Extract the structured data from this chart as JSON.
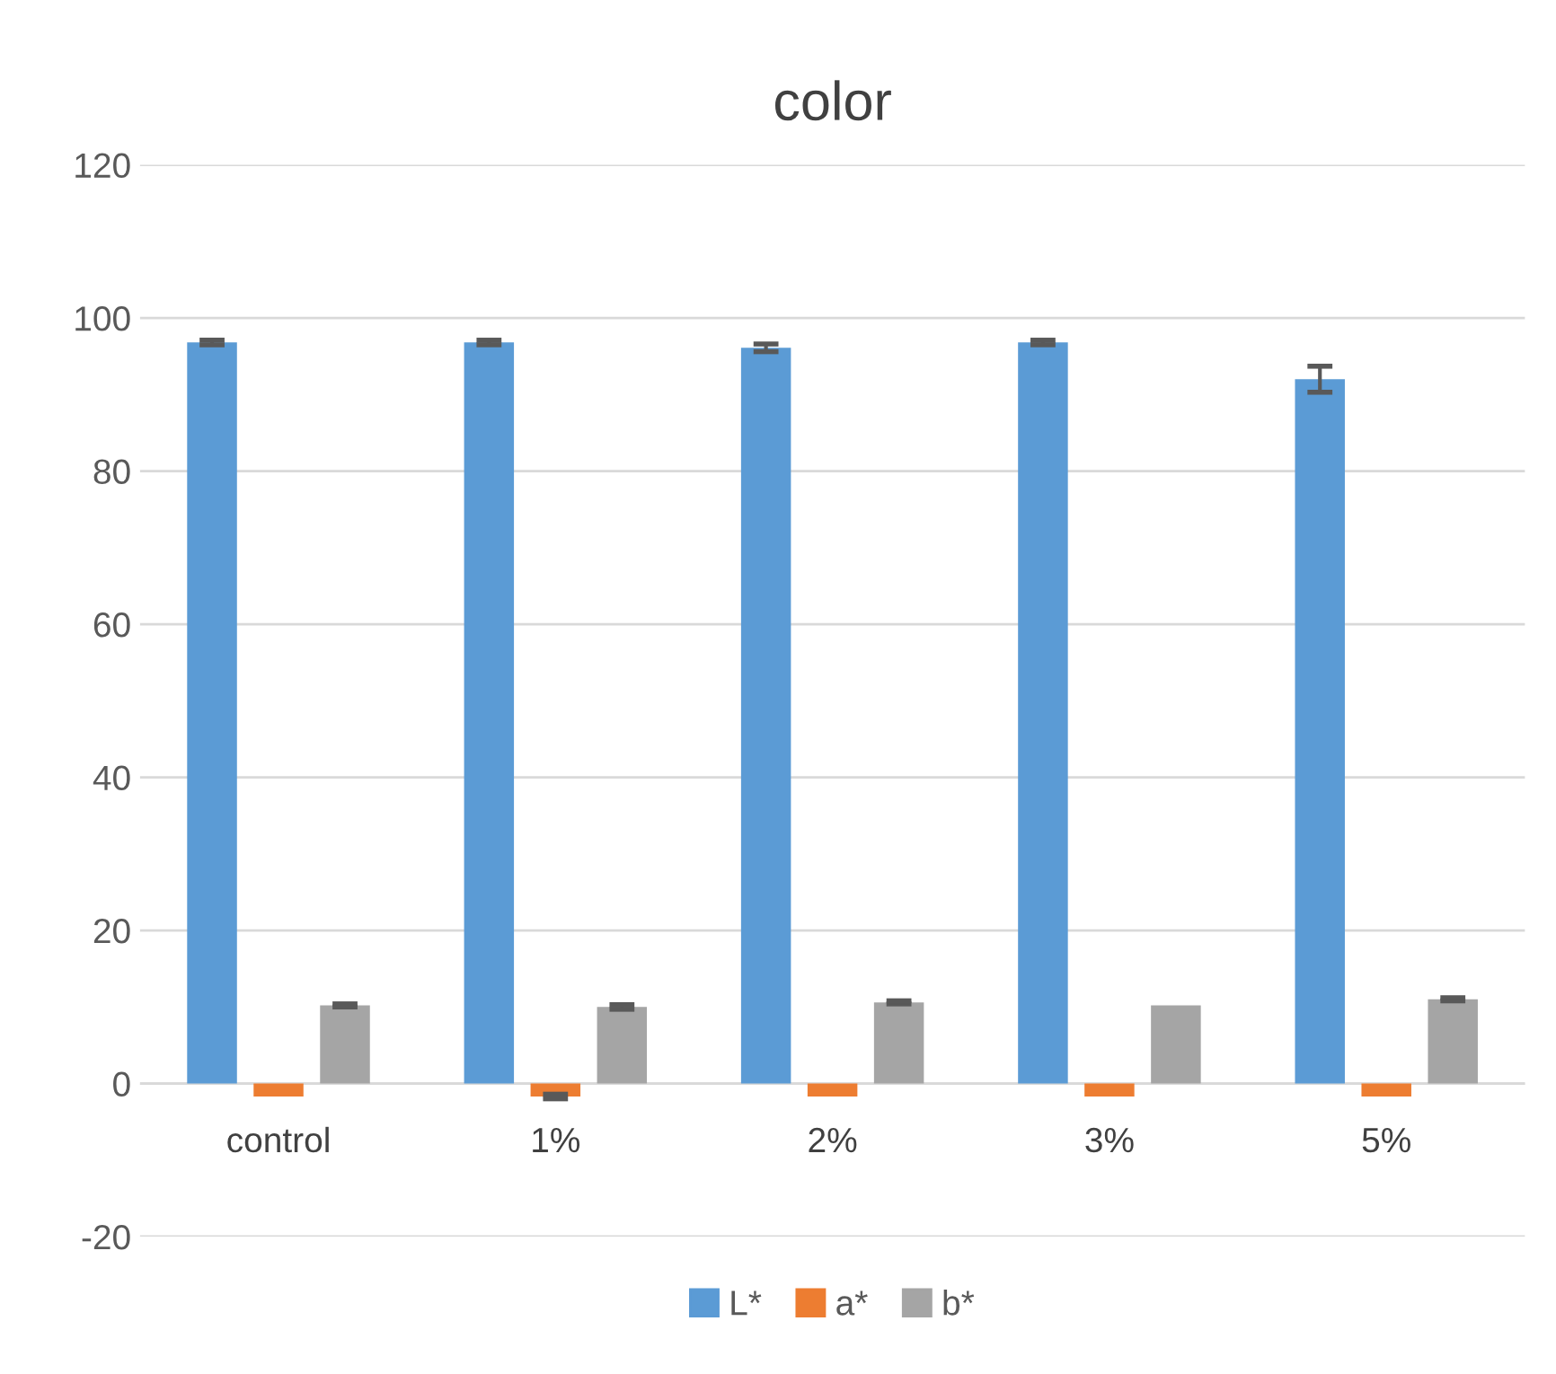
{
  "chart_data": {
    "type": "bar",
    "title": "color",
    "categories": [
      "control",
      "1%",
      "2%",
      "3%",
      "5%"
    ],
    "series": [
      {
        "name": "L*",
        "color": "#5b9bd5",
        "values": [
          96.8,
          96.8,
          96.1,
          96.8,
          92.0
        ],
        "errors": [
          0.3,
          0.3,
          0.5,
          0.3,
          1.7
        ]
      },
      {
        "name": "a*",
        "color": "#ed7d31",
        "values": [
          -1.7,
          -1.7,
          -1.7,
          -1.7,
          -1.7
        ],
        "errors": [
          null,
          0.3,
          null,
          null,
          null
        ]
      },
      {
        "name": "b*",
        "color": "#a5a5a5",
        "values": [
          10.2,
          10.0,
          10.6,
          10.2,
          11.0
        ],
        "errors": [
          0.2,
          0.3,
          0.2,
          null,
          0.2
        ]
      }
    ],
    "ylim": [
      -20,
      120
    ],
    "yticks": [
      -20,
      0,
      20,
      40,
      60,
      80,
      100,
      120
    ],
    "grid": "y",
    "legend": "bottom"
  }
}
